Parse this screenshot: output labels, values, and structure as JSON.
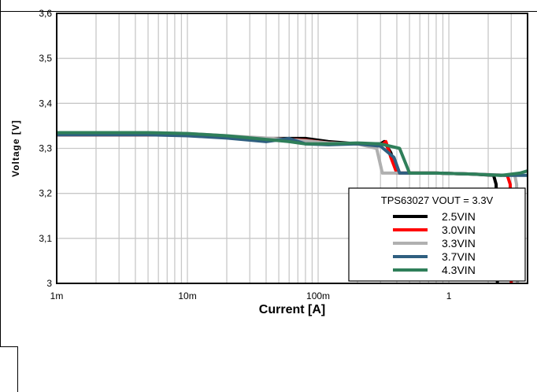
{
  "chart_data": {
    "type": "line",
    "title": "",
    "xlabel": "Current [A]",
    "ylabel": "Voltage [V]",
    "x_scale": "log",
    "xlim": [
      0.001,
      4
    ],
    "ylim": [
      3.0,
      3.6
    ],
    "grid": true,
    "x_ticks": [
      {
        "value": 0.001,
        "label": "1m"
      },
      {
        "value": 0.01,
        "label": "10m"
      },
      {
        "value": 0.1,
        "label": "100m"
      },
      {
        "value": 1,
        "label": "1"
      }
    ],
    "y_ticks": [
      {
        "value": 3.0,
        "label": "3"
      },
      {
        "value": 3.1,
        "label": "3,1"
      },
      {
        "value": 3.2,
        "label": "3,2"
      },
      {
        "value": 3.3,
        "label": "3,3"
      },
      {
        "value": 3.4,
        "label": "3,4"
      },
      {
        "value": 3.5,
        "label": "3,5"
      },
      {
        "value": 3.6,
        "label": "3,6"
      }
    ],
    "legend_title": "TPS63027 VOUT = 3.3V",
    "legend_position": "bottom-right",
    "series": [
      {
        "name": "2.5VIN",
        "color": "#000000",
        "points": [
          [
            0.001,
            3.33
          ],
          [
            0.005,
            3.33
          ],
          [
            0.01,
            3.33
          ],
          [
            0.02,
            3.326
          ],
          [
            0.04,
            3.322
          ],
          [
            0.08,
            3.322
          ],
          [
            0.12,
            3.315
          ],
          [
            0.2,
            3.31
          ],
          [
            0.3,
            3.31
          ],
          [
            0.32,
            3.315
          ],
          [
            0.36,
            3.29
          ],
          [
            0.4,
            3.245
          ],
          [
            0.8,
            3.245
          ],
          [
            1.5,
            3.243
          ],
          [
            2.2,
            3.24
          ],
          [
            2.3,
            3.22
          ],
          [
            2.35,
            3.0
          ]
        ]
      },
      {
        "name": "3.0VIN",
        "color": "#ff0000",
        "points": [
          [
            0.001,
            3.33
          ],
          [
            0.005,
            3.33
          ],
          [
            0.01,
            3.33
          ],
          [
            0.02,
            3.326
          ],
          [
            0.04,
            3.322
          ],
          [
            0.08,
            3.318
          ],
          [
            0.12,
            3.312
          ],
          [
            0.2,
            3.31
          ],
          [
            0.3,
            3.305
          ],
          [
            0.33,
            3.315
          ],
          [
            0.36,
            3.28
          ],
          [
            0.4,
            3.245
          ],
          [
            0.8,
            3.245
          ],
          [
            1.5,
            3.243
          ],
          [
            2.8,
            3.24
          ],
          [
            2.95,
            3.22
          ],
          [
            3.0,
            3.0
          ]
        ]
      },
      {
        "name": "3.3VIN",
        "color": "#b0b0b0",
        "points": [
          [
            0.001,
            3.335
          ],
          [
            0.005,
            3.335
          ],
          [
            0.01,
            3.333
          ],
          [
            0.02,
            3.328
          ],
          [
            0.04,
            3.323
          ],
          [
            0.08,
            3.317
          ],
          [
            0.12,
            3.312
          ],
          [
            0.2,
            3.31
          ],
          [
            0.28,
            3.3
          ],
          [
            0.31,
            3.245
          ],
          [
            0.8,
            3.245
          ],
          [
            1.5,
            3.243
          ],
          [
            3.2,
            3.24
          ],
          [
            3.3,
            3.22
          ],
          [
            3.35,
            3.0
          ]
        ]
      },
      {
        "name": "3.7VIN",
        "color": "#2f5f80",
        "points": [
          [
            0.001,
            3.33
          ],
          [
            0.005,
            3.33
          ],
          [
            0.01,
            3.328
          ],
          [
            0.02,
            3.323
          ],
          [
            0.04,
            3.315
          ],
          [
            0.06,
            3.322
          ],
          [
            0.08,
            3.31
          ],
          [
            0.12,
            3.308
          ],
          [
            0.2,
            3.31
          ],
          [
            0.3,
            3.305
          ],
          [
            0.38,
            3.28
          ],
          [
            0.42,
            3.245
          ],
          [
            0.8,
            3.245
          ],
          [
            1.5,
            3.243
          ],
          [
            2.5,
            3.24
          ],
          [
            4.0,
            3.24
          ]
        ]
      },
      {
        "name": "4.3VIN",
        "color": "#2f7f5a",
        "points": [
          [
            0.001,
            3.335
          ],
          [
            0.005,
            3.335
          ],
          [
            0.01,
            3.333
          ],
          [
            0.02,
            3.328
          ],
          [
            0.04,
            3.32
          ],
          [
            0.06,
            3.315
          ],
          [
            0.08,
            3.31
          ],
          [
            0.12,
            3.31
          ],
          [
            0.2,
            3.312
          ],
          [
            0.3,
            3.31
          ],
          [
            0.42,
            3.3
          ],
          [
            0.5,
            3.245
          ],
          [
            0.8,
            3.245
          ],
          [
            1.5,
            3.243
          ],
          [
            2.5,
            3.24
          ],
          [
            3.5,
            3.245
          ],
          [
            4.0,
            3.25
          ]
        ]
      }
    ]
  }
}
